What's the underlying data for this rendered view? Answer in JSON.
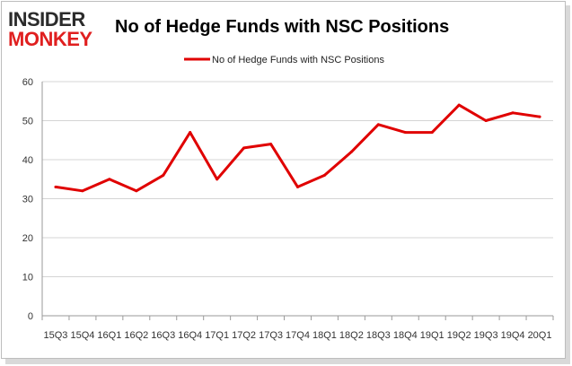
{
  "brand": {
    "line1": "INSIDER",
    "line2": "MONKEY",
    "colors": {
      "dark": "#2b2b2b",
      "red": "#e01f1f"
    }
  },
  "chart_data": {
    "type": "line",
    "title": "No of Hedge Funds with NSC Positions",
    "xlabel": "",
    "ylabel": "",
    "legend": {
      "placement": "top",
      "entries": [
        "No of Hedge Funds with NSC Positions"
      ]
    },
    "grid": true,
    "ylim": [
      0,
      60
    ],
    "yticks": [
      0,
      10,
      20,
      30,
      40,
      50,
      60
    ],
    "categories": [
      "15Q3",
      "15Q4",
      "16Q1",
      "16Q2",
      "16Q3",
      "16Q4",
      "17Q1",
      "17Q2",
      "17Q3",
      "17Q4",
      "18Q1",
      "18Q2",
      "18Q3",
      "18Q4",
      "19Q1",
      "19Q2",
      "19Q3",
      "19Q4",
      "20Q1"
    ],
    "series": [
      {
        "name": "No of Hedge Funds with NSC Positions",
        "color": "#e00000",
        "values": [
          33,
          32,
          35,
          32,
          36,
          47,
          35,
          43,
          44,
          33,
          36,
          42,
          49,
          47,
          47,
          54,
          50,
          52,
          51
        ]
      }
    ]
  }
}
